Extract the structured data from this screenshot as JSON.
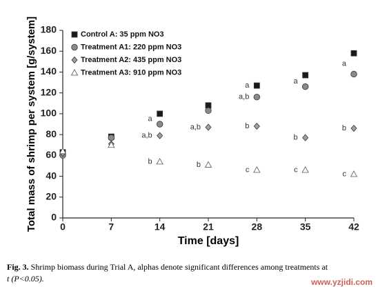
{
  "chart_data": {
    "type": "scatter",
    "x_label": "Time [days]",
    "y_label": "Total mass of shrimp per system [g/system]",
    "x": [
      0,
      7,
      14,
      21,
      28,
      35,
      42
    ],
    "xlim": [
      0,
      42
    ],
    "xticks": [
      0,
      7,
      14,
      21,
      28,
      35,
      42
    ],
    "ylim": [
      0,
      180
    ],
    "yticks": [
      0,
      20,
      40,
      60,
      80,
      100,
      120,
      140,
      160,
      180
    ],
    "legend": "top-left",
    "series": [
      {
        "name": "Control A: 35 ppm NO3",
        "marker": "square",
        "color": "#1a1a1a",
        "values": [
          63,
          78,
          100,
          108,
          127,
          137,
          158
        ]
      },
      {
        "name": "Treatment A1: 220 ppm NO3",
        "marker": "circle",
        "color": "#8a8a8a",
        "values": [
          60,
          77,
          90,
          103,
          116,
          126,
          138
        ]
      },
      {
        "name": "Treatment A2: 435 ppm NO3",
        "marker": "diamond",
        "color": "#a0a0a0",
        "values": [
          62,
          71,
          79,
          87,
          88,
          77,
          86
        ]
      },
      {
        "name": "Treatment A3: 910 ppm NO3",
        "marker": "triangle",
        "color": "#ffffff",
        "values": [
          64,
          70,
          54,
          51,
          46,
          46,
          42
        ]
      }
    ],
    "annotations": [
      {
        "text": "a",
        "x": 14,
        "y": 95
      },
      {
        "text": "a,b",
        "x": 14,
        "y": 79
      },
      {
        "text": "b",
        "x": 14,
        "y": 54
      },
      {
        "text": "a,b",
        "x": 21,
        "y": 87
      },
      {
        "text": "b",
        "x": 21,
        "y": 51
      },
      {
        "text": "a",
        "x": 28,
        "y": 127
      },
      {
        "text": "a,b",
        "x": 28,
        "y": 116
      },
      {
        "text": "b",
        "x": 28,
        "y": 88
      },
      {
        "text": "c",
        "x": 28,
        "y": 46
      },
      {
        "text": "a",
        "x": 35,
        "y": 131
      },
      {
        "text": "b",
        "x": 35,
        "y": 77
      },
      {
        "text": "c",
        "x": 35,
        "y": 46
      },
      {
        "text": "a",
        "x": 42,
        "y": 148
      },
      {
        "text": "b",
        "x": 42,
        "y": 86
      },
      {
        "text": "c",
        "x": 42,
        "y": 42
      }
    ]
  },
  "caption": {
    "label": "Fig. 3.",
    "line1": "Shrimp biomass during Trial A, alphas denote significant differences among treatments at",
    "line2": "t (P<0.05)."
  },
  "watermark": "www.yzjidi.com"
}
